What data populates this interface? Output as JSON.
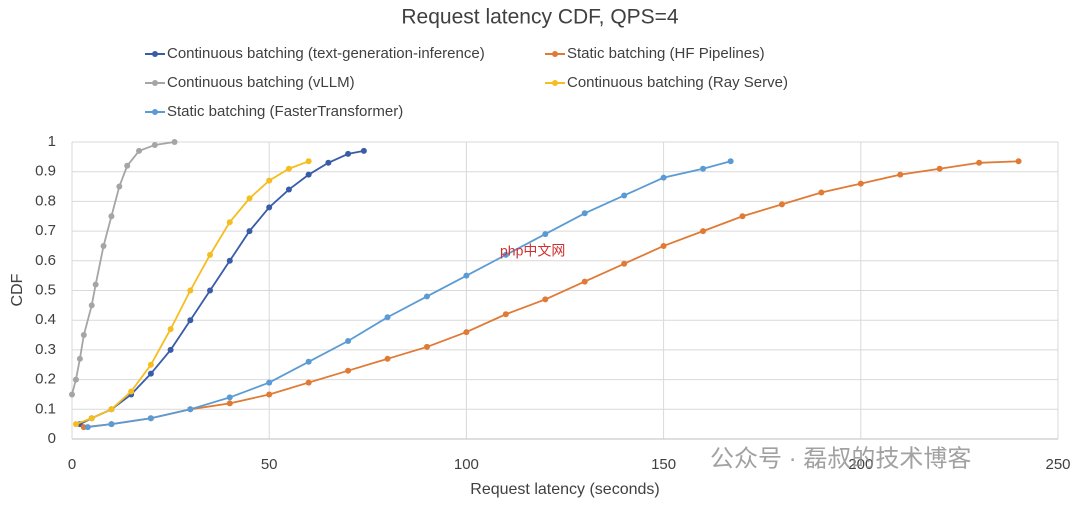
{
  "chart_data": {
    "type": "line",
    "title": "Request latency CDF, QPS=4",
    "x_label": "Request latency (seconds)",
    "y_label": "CDF",
    "xlim": [
      0,
      250
    ],
    "xticks": [
      0,
      50,
      100,
      150,
      200,
      250
    ],
    "ylim": [
      0,
      1
    ],
    "yticks": [
      0,
      0.1,
      0.2,
      0.3,
      0.4,
      0.5,
      0.6,
      0.7,
      0.8,
      0.9,
      1
    ],
    "grid": true,
    "series": [
      {
        "name": "Continuous batching (text-generation-inference)",
        "color": "#3a5ca8",
        "x": [
          2,
          5,
          10,
          15,
          20,
          25,
          30,
          35,
          40,
          45,
          50,
          55,
          60,
          65,
          70,
          74
        ],
        "values": [
          0.05,
          0.07,
          0.1,
          0.15,
          0.22,
          0.3,
          0.4,
          0.5,
          0.6,
          0.7,
          0.78,
          0.84,
          0.89,
          0.93,
          0.96,
          0.97
        ]
      },
      {
        "name": "Static batching (HF Pipelines)",
        "color": "#e07a35",
        "x": [
          3,
          10,
          20,
          30,
          40,
          50,
          60,
          70,
          80,
          90,
          100,
          110,
          120,
          130,
          140,
          150,
          160,
          170,
          180,
          190,
          200,
          210,
          220,
          230,
          240
        ],
        "values": [
          0.04,
          0.05,
          0.07,
          0.1,
          0.12,
          0.15,
          0.19,
          0.23,
          0.27,
          0.31,
          0.36,
          0.42,
          0.47,
          0.53,
          0.59,
          0.65,
          0.7,
          0.75,
          0.79,
          0.83,
          0.86,
          0.89,
          0.91,
          0.93,
          0.935
        ]
      },
      {
        "name": "Continuous batching (vLLM)",
        "color": "#a5a5a5",
        "x": [
          0,
          1,
          2,
          3,
          5,
          6,
          8,
          10,
          12,
          14,
          17,
          21,
          26
        ],
        "values": [
          0.15,
          0.2,
          0.27,
          0.35,
          0.45,
          0.52,
          0.65,
          0.75,
          0.85,
          0.92,
          0.97,
          0.99,
          1
        ]
      },
      {
        "name": "Continuous batching (Ray Serve)",
        "color": "#f5bd1f",
        "x": [
          1,
          5,
          10,
          15,
          20,
          25,
          30,
          35,
          40,
          45,
          50,
          55,
          60
        ],
        "values": [
          0.05,
          0.07,
          0.1,
          0.16,
          0.25,
          0.37,
          0.5,
          0.62,
          0.73,
          0.81,
          0.87,
          0.91,
          0.935
        ]
      },
      {
        "name": "Static batching (FasterTransformer)",
        "color": "#5b9bd5",
        "x": [
          4,
          10,
          20,
          30,
          40,
          50,
          60,
          70,
          80,
          90,
          100,
          110,
          120,
          130,
          140,
          150,
          160,
          167
        ],
        "values": [
          0.04,
          0.05,
          0.07,
          0.1,
          0.14,
          0.19,
          0.26,
          0.33,
          0.41,
          0.48,
          0.55,
          0.62,
          0.69,
          0.76,
          0.82,
          0.88,
          0.91,
          0.935
        ]
      }
    ],
    "watermarks": [
      "php中文网",
      "公众号 · 磊叔的技术博客"
    ]
  }
}
